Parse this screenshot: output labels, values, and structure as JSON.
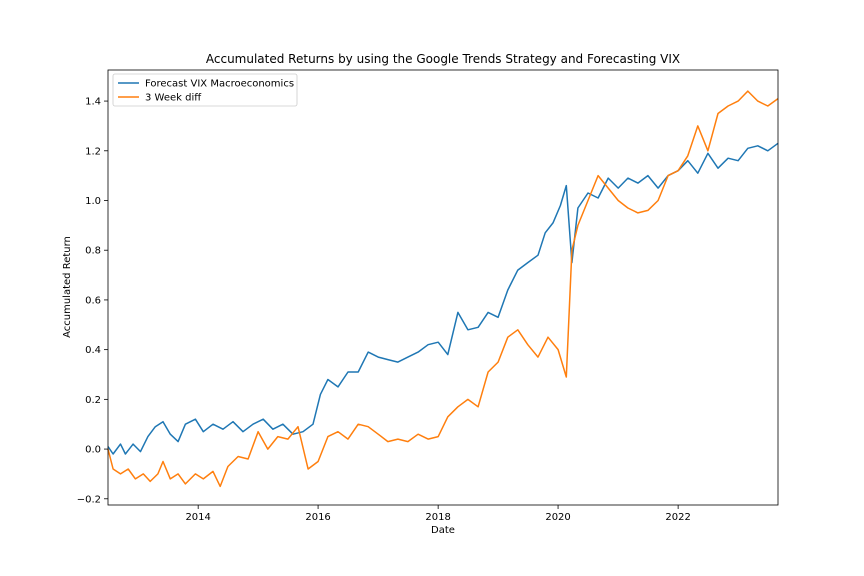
{
  "chart_data": {
    "type": "line",
    "title": "Accumulated Returns by using the Google Trends Strategy and Forecasting VIX",
    "xlabel": "Date",
    "ylabel": "Accumulated Return",
    "xlim": [
      "2012-07-01",
      "2023-09-01"
    ],
    "ylim": [
      -0.225,
      1.525
    ],
    "x_ticks": [
      "2014",
      "2016",
      "2018",
      "2020",
      "2022"
    ],
    "y_ticks": [
      "−0.2",
      "0.0",
      "0.2",
      "0.4",
      "0.6",
      "0.8",
      "1.0",
      "1.2",
      "1.4"
    ],
    "legend_position": "upper-left",
    "grid": false,
    "series": [
      {
        "name": "Forecast VIX Macroeconomics",
        "color": "#1f77b4",
        "points": [
          [
            "2012-07-01",
            0.01
          ],
          [
            "2012-08-01",
            -0.02
          ],
          [
            "2012-09-15",
            0.02
          ],
          [
            "2012-10-15",
            -0.02
          ],
          [
            "2012-12-01",
            0.02
          ],
          [
            "2013-01-15",
            -0.01
          ],
          [
            "2013-03-01",
            0.05
          ],
          [
            "2013-04-15",
            0.09
          ],
          [
            "2013-06-01",
            0.11
          ],
          [
            "2013-07-15",
            0.06
          ],
          [
            "2013-09-01",
            0.03
          ],
          [
            "2013-10-15",
            0.1
          ],
          [
            "2013-12-15",
            0.12
          ],
          [
            "2014-02-01",
            0.07
          ],
          [
            "2014-04-01",
            0.1
          ],
          [
            "2014-06-01",
            0.08
          ],
          [
            "2014-08-01",
            0.11
          ],
          [
            "2014-10-01",
            0.07
          ],
          [
            "2014-12-01",
            0.1
          ],
          [
            "2015-02-01",
            0.12
          ],
          [
            "2015-04-01",
            0.08
          ],
          [
            "2015-06-01",
            0.1
          ],
          [
            "2015-08-01",
            0.06
          ],
          [
            "2015-10-01",
            0.07
          ],
          [
            "2015-12-01",
            0.1
          ],
          [
            "2016-01-15",
            0.22
          ],
          [
            "2016-03-01",
            0.28
          ],
          [
            "2016-05-01",
            0.25
          ],
          [
            "2016-07-01",
            0.31
          ],
          [
            "2016-09-01",
            0.31
          ],
          [
            "2016-11-01",
            0.39
          ],
          [
            "2017-01-01",
            0.37
          ],
          [
            "2017-03-01",
            0.36
          ],
          [
            "2017-05-01",
            0.35
          ],
          [
            "2017-07-01",
            0.37
          ],
          [
            "2017-09-01",
            0.39
          ],
          [
            "2017-11-01",
            0.42
          ],
          [
            "2018-01-01",
            0.43
          ],
          [
            "2018-03-01",
            0.38
          ],
          [
            "2018-05-01",
            0.55
          ],
          [
            "2018-07-01",
            0.48
          ],
          [
            "2018-09-01",
            0.49
          ],
          [
            "2018-11-01",
            0.55
          ],
          [
            "2019-01-01",
            0.53
          ],
          [
            "2019-03-01",
            0.64
          ],
          [
            "2019-05-01",
            0.72
          ],
          [
            "2019-07-01",
            0.75
          ],
          [
            "2019-09-01",
            0.78
          ],
          [
            "2019-10-15",
            0.87
          ],
          [
            "2019-12-01",
            0.91
          ],
          [
            "2020-01-15",
            0.98
          ],
          [
            "2020-02-20",
            1.06
          ],
          [
            "2020-03-25",
            0.75
          ],
          [
            "2020-05-01",
            0.97
          ],
          [
            "2020-07-01",
            1.03
          ],
          [
            "2020-09-01",
            1.01
          ],
          [
            "2020-11-01",
            1.09
          ],
          [
            "2021-01-01",
            1.05
          ],
          [
            "2021-03-01",
            1.09
          ],
          [
            "2021-05-01",
            1.07
          ],
          [
            "2021-07-01",
            1.1
          ],
          [
            "2021-09-01",
            1.05
          ],
          [
            "2021-11-01",
            1.1
          ],
          [
            "2022-01-01",
            1.12
          ],
          [
            "2022-03-01",
            1.16
          ],
          [
            "2022-05-01",
            1.11
          ],
          [
            "2022-07-01",
            1.19
          ],
          [
            "2022-09-01",
            1.13
          ],
          [
            "2022-11-01",
            1.17
          ],
          [
            "2023-01-01",
            1.16
          ],
          [
            "2023-03-01",
            1.21
          ],
          [
            "2023-05-01",
            1.22
          ],
          [
            "2023-07-01",
            1.2
          ],
          [
            "2023-09-01",
            1.23
          ]
        ]
      },
      {
        "name": "3 Week diff",
        "color": "#ff7f0e",
        "points": [
          [
            "2012-07-01",
            0.0
          ],
          [
            "2012-08-01",
            -0.08
          ],
          [
            "2012-09-15",
            -0.1
          ],
          [
            "2012-11-01",
            -0.08
          ],
          [
            "2012-12-15",
            -0.12
          ],
          [
            "2013-02-01",
            -0.1
          ],
          [
            "2013-03-15",
            -0.13
          ],
          [
            "2013-05-01",
            -0.1
          ],
          [
            "2013-06-01",
            -0.05
          ],
          [
            "2013-07-15",
            -0.12
          ],
          [
            "2013-09-01",
            -0.1
          ],
          [
            "2013-10-15",
            -0.14
          ],
          [
            "2013-12-15",
            -0.1
          ],
          [
            "2014-02-01",
            -0.12
          ],
          [
            "2014-04-01",
            -0.09
          ],
          [
            "2014-05-15",
            -0.15
          ],
          [
            "2014-07-01",
            -0.07
          ],
          [
            "2014-09-01",
            -0.03
          ],
          [
            "2014-11-01",
            -0.04
          ],
          [
            "2015-01-01",
            0.07
          ],
          [
            "2015-03-01",
            0.0
          ],
          [
            "2015-05-01",
            0.05
          ],
          [
            "2015-07-01",
            0.04
          ],
          [
            "2015-09-01",
            0.09
          ],
          [
            "2015-11-01",
            -0.08
          ],
          [
            "2016-01-01",
            -0.05
          ],
          [
            "2016-03-01",
            0.05
          ],
          [
            "2016-05-01",
            0.07
          ],
          [
            "2016-07-01",
            0.04
          ],
          [
            "2016-09-01",
            0.1
          ],
          [
            "2016-11-01",
            0.09
          ],
          [
            "2017-01-01",
            0.06
          ],
          [
            "2017-03-01",
            0.03
          ],
          [
            "2017-05-01",
            0.04
          ],
          [
            "2017-07-01",
            0.03
          ],
          [
            "2017-09-01",
            0.06
          ],
          [
            "2017-11-01",
            0.04
          ],
          [
            "2018-01-01",
            0.05
          ],
          [
            "2018-03-01",
            0.13
          ],
          [
            "2018-05-01",
            0.17
          ],
          [
            "2018-07-01",
            0.2
          ],
          [
            "2018-09-01",
            0.17
          ],
          [
            "2018-11-01",
            0.31
          ],
          [
            "2019-01-01",
            0.35
          ],
          [
            "2019-03-01",
            0.45
          ],
          [
            "2019-05-01",
            0.48
          ],
          [
            "2019-07-01",
            0.42
          ],
          [
            "2019-09-01",
            0.37
          ],
          [
            "2019-11-01",
            0.45
          ],
          [
            "2020-01-01",
            0.4
          ],
          [
            "2020-02-20",
            0.29
          ],
          [
            "2020-03-25",
            0.8
          ],
          [
            "2020-05-01",
            0.9
          ],
          [
            "2020-07-01",
            1.0
          ],
          [
            "2020-09-01",
            1.1
          ],
          [
            "2020-11-01",
            1.05
          ],
          [
            "2021-01-01",
            1.0
          ],
          [
            "2021-03-01",
            0.97
          ],
          [
            "2021-05-01",
            0.95
          ],
          [
            "2021-07-01",
            0.96
          ],
          [
            "2021-09-01",
            1.0
          ],
          [
            "2021-11-01",
            1.1
          ],
          [
            "2022-01-01",
            1.12
          ],
          [
            "2022-03-01",
            1.18
          ],
          [
            "2022-05-01",
            1.3
          ],
          [
            "2022-07-01",
            1.2
          ],
          [
            "2022-09-01",
            1.35
          ],
          [
            "2022-11-01",
            1.38
          ],
          [
            "2023-01-01",
            1.4
          ],
          [
            "2023-03-01",
            1.44
          ],
          [
            "2023-05-01",
            1.4
          ],
          [
            "2023-07-01",
            1.38
          ],
          [
            "2023-09-01",
            1.41
          ]
        ]
      }
    ]
  }
}
